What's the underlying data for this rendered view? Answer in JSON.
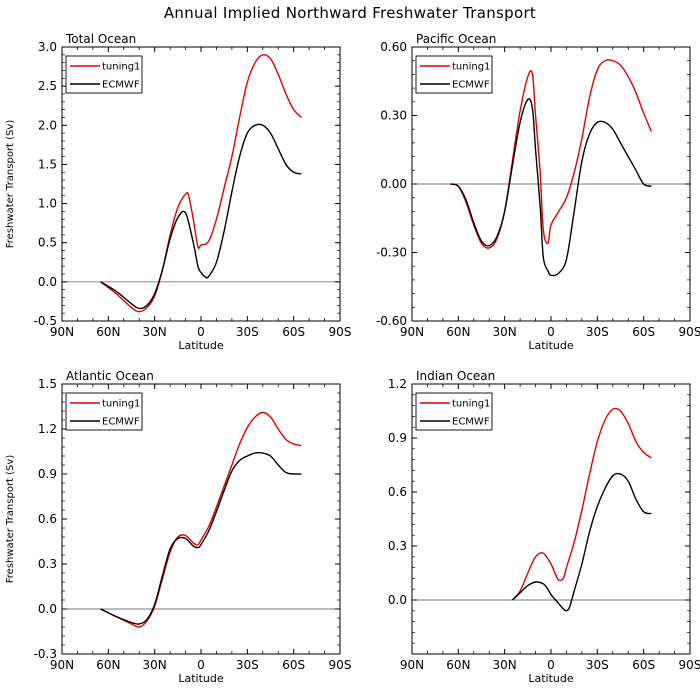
{
  "title": "Annual Implied Northward Freshwater Transport",
  "chart_data": [
    {
      "type": "line",
      "title": "Total Ocean",
      "xlabel": "Latitude",
      "ylabel": "Freshwater Transport (Sv)",
      "xlim": [
        90,
        -90
      ],
      "ylim": [
        -0.5,
        3.0
      ],
      "xticks": [
        90,
        60,
        30,
        0,
        -30,
        -60,
        -90
      ],
      "xticklabels": [
        "90N",
        "60N",
        "30N",
        "0",
        "30S",
        "60S",
        "90S"
      ],
      "yticks": [
        -0.5,
        0.0,
        0.5,
        1.0,
        1.5,
        2.0,
        2.5,
        3.0
      ],
      "yticklabels": [
        "-0.5",
        "0.0",
        "0.5",
        "1.0",
        "1.5",
        "2.0",
        "2.5",
        "3.0"
      ],
      "legend": "top-left",
      "series": [
        {
          "name": "tuning1",
          "color": "#e00000",
          "x": [
            65,
            55,
            45,
            40,
            35,
            30,
            25,
            20,
            15,
            10,
            8,
            5,
            2,
            0,
            -5,
            -10,
            -15,
            -20,
            -25,
            -30,
            -35,
            -40,
            -45,
            -50,
            -55,
            -60,
            -65
          ],
          "y": [
            0.0,
            -0.15,
            -0.33,
            -0.38,
            -0.33,
            -0.18,
            0.15,
            0.6,
            0.95,
            1.12,
            1.1,
            0.8,
            0.45,
            0.47,
            0.52,
            0.8,
            1.2,
            1.6,
            2.1,
            2.55,
            2.8,
            2.9,
            2.85,
            2.65,
            2.4,
            2.2,
            2.1
          ]
        },
        {
          "name": "ECMWF",
          "color": "#000000",
          "x": [
            65,
            55,
            45,
            40,
            35,
            30,
            25,
            20,
            15,
            10,
            5,
            2,
            0,
            -3,
            -5,
            -10,
            -15,
            -20,
            -25,
            -30,
            -35,
            -40,
            -45,
            -50,
            -55,
            -60,
            -65
          ],
          "y": [
            0.0,
            -0.12,
            -0.28,
            -0.34,
            -0.3,
            -0.15,
            0.15,
            0.55,
            0.82,
            0.88,
            0.5,
            0.2,
            0.12,
            0.06,
            0.07,
            0.25,
            0.65,
            1.15,
            1.6,
            1.9,
            2.0,
            2.0,
            1.9,
            1.7,
            1.5,
            1.4,
            1.38
          ]
        }
      ]
    },
    {
      "type": "line",
      "title": "Pacific Ocean",
      "xlabel": "Latitude",
      "ylabel": "",
      "xlim": [
        90,
        -90
      ],
      "ylim": [
        -0.6,
        0.6
      ],
      "xticks": [
        90,
        60,
        30,
        0,
        -30,
        -60,
        -90
      ],
      "xticklabels": [
        "90N",
        "60N",
        "30N",
        "0",
        "30S",
        "60S",
        "90S"
      ],
      "yticks": [
        -0.6,
        -0.3,
        0.0,
        0.3,
        0.6
      ],
      "yticklabels": [
        "-0.60",
        "-0.30",
        "0.00",
        "0.30",
        "0.60"
      ],
      "legend": "top-left",
      "series": [
        {
          "name": "tuning1",
          "color": "#e00000",
          "x": [
            65,
            60,
            55,
            50,
            45,
            40,
            35,
            30,
            25,
            20,
            15,
            12,
            10,
            7,
            5,
            2,
            0,
            -5,
            -10,
            -15,
            -20,
            -25,
            -30,
            -35,
            -40,
            -45,
            -50,
            -55,
            -60,
            -65
          ],
          "y": [
            0.0,
            -0.01,
            -0.08,
            -0.18,
            -0.26,
            -0.28,
            -0.24,
            -0.12,
            0.1,
            0.32,
            0.47,
            0.48,
            0.3,
            0.05,
            -0.2,
            -0.26,
            -0.18,
            -0.12,
            -0.06,
            0.05,
            0.2,
            0.38,
            0.5,
            0.54,
            0.54,
            0.52,
            0.47,
            0.4,
            0.31,
            0.23
          ]
        },
        {
          "name": "ECMWF",
          "color": "#000000",
          "x": [
            65,
            60,
            55,
            50,
            45,
            40,
            35,
            30,
            25,
            20,
            15,
            12,
            10,
            7,
            5,
            2,
            0,
            -5,
            -10,
            -15,
            -20,
            -25,
            -30,
            -35,
            -40,
            -45,
            -50,
            -55,
            -60,
            -65
          ],
          "y": [
            0.0,
            -0.01,
            -0.07,
            -0.17,
            -0.25,
            -0.27,
            -0.23,
            -0.12,
            0.08,
            0.27,
            0.37,
            0.33,
            0.15,
            -0.1,
            -0.32,
            -0.38,
            -0.4,
            -0.39,
            -0.33,
            -0.12,
            0.1,
            0.22,
            0.27,
            0.27,
            0.24,
            0.18,
            0.12,
            0.06,
            0.0,
            -0.01
          ]
        }
      ]
    },
    {
      "type": "line",
      "title": "Atlantic Ocean",
      "xlabel": "Latitude",
      "ylabel": "Freshwater Transport (Sv)",
      "xlim": [
        90,
        -90
      ],
      "ylim": [
        -0.3,
        1.5
      ],
      "xticks": [
        90,
        60,
        30,
        0,
        -30,
        -60,
        -90
      ],
      "xticklabels": [
        "90N",
        "60N",
        "30N",
        "0",
        "30S",
        "60S",
        "90S"
      ],
      "yticks": [
        -0.3,
        0.0,
        0.3,
        0.6,
        0.9,
        1.2,
        1.5
      ],
      "yticklabels": [
        "-0.3",
        "0.0",
        "0.3",
        "0.6",
        "0.9",
        "1.2",
        "1.5"
      ],
      "legend": "top-left",
      "series": [
        {
          "name": "tuning1",
          "color": "#e00000",
          "x": [
            65,
            55,
            45,
            40,
            35,
            30,
            25,
            20,
            15,
            10,
            5,
            2,
            0,
            -5,
            -10,
            -15,
            -20,
            -25,
            -30,
            -35,
            -40,
            -45,
            -50,
            -55,
            -60,
            -65
          ],
          "y": [
            0.0,
            -0.05,
            -0.1,
            -0.12,
            -0.08,
            0.02,
            0.2,
            0.38,
            0.48,
            0.49,
            0.44,
            0.43,
            0.46,
            0.55,
            0.68,
            0.82,
            0.96,
            1.1,
            1.21,
            1.28,
            1.31,
            1.28,
            1.2,
            1.13,
            1.1,
            1.09
          ]
        },
        {
          "name": "ECMWF",
          "color": "#000000",
          "x": [
            65,
            55,
            45,
            40,
            35,
            30,
            25,
            20,
            15,
            10,
            5,
            2,
            0,
            -5,
            -10,
            -15,
            -20,
            -25,
            -30,
            -35,
            -40,
            -45,
            -50,
            -55,
            -60,
            -65
          ],
          "y": [
            0.0,
            -0.05,
            -0.09,
            -0.1,
            -0.07,
            0.03,
            0.22,
            0.4,
            0.47,
            0.47,
            0.42,
            0.41,
            0.43,
            0.52,
            0.65,
            0.79,
            0.92,
            0.99,
            1.02,
            1.04,
            1.04,
            1.02,
            0.96,
            0.91,
            0.9,
            0.9
          ]
        }
      ]
    },
    {
      "type": "line",
      "title": "Indian Ocean",
      "xlabel": "Latitude",
      "ylabel": "",
      "xlim": [
        90,
        -90
      ],
      "ylim": [
        -0.3,
        1.2
      ],
      "xticks": [
        90,
        60,
        30,
        0,
        -30,
        -60,
        -90
      ],
      "xticklabels": [
        "90N",
        "60N",
        "30N",
        "0",
        "30S",
        "60S",
        "90S"
      ],
      "yticks": [
        0.0,
        0.3,
        0.6,
        0.9,
        1.2
      ],
      "yticklabels": [
        "0.0",
        "0.3",
        "0.6",
        "0.9",
        "1.2"
      ],
      "legend": "top-left",
      "series": [
        {
          "name": "tuning1",
          "color": "#e00000",
          "x": [
            25,
            20,
            15,
            10,
            5,
            0,
            -3,
            -5,
            -8,
            -10,
            -15,
            -20,
            -25,
            -30,
            -35,
            -40,
            -45,
            -50,
            -55,
            -60,
            -65
          ],
          "y": [
            0.0,
            0.05,
            0.15,
            0.24,
            0.26,
            0.2,
            0.14,
            0.11,
            0.12,
            0.18,
            0.32,
            0.5,
            0.7,
            0.88,
            1.0,
            1.06,
            1.05,
            0.98,
            0.88,
            0.82,
            0.79
          ]
        },
        {
          "name": "ECMWF",
          "color": "#000000",
          "x": [
            25,
            20,
            15,
            10,
            5,
            2,
            0,
            -5,
            -8,
            -10,
            -12,
            -15,
            -20,
            -25,
            -30,
            -35,
            -40,
            -45,
            -50,
            -55,
            -60,
            -65
          ],
          "y": [
            0.0,
            0.04,
            0.08,
            0.1,
            0.09,
            0.06,
            0.03,
            -0.02,
            -0.05,
            -0.06,
            -0.04,
            0.05,
            0.2,
            0.38,
            0.52,
            0.62,
            0.69,
            0.7,
            0.66,
            0.56,
            0.49,
            0.48
          ]
        }
      ]
    }
  ]
}
